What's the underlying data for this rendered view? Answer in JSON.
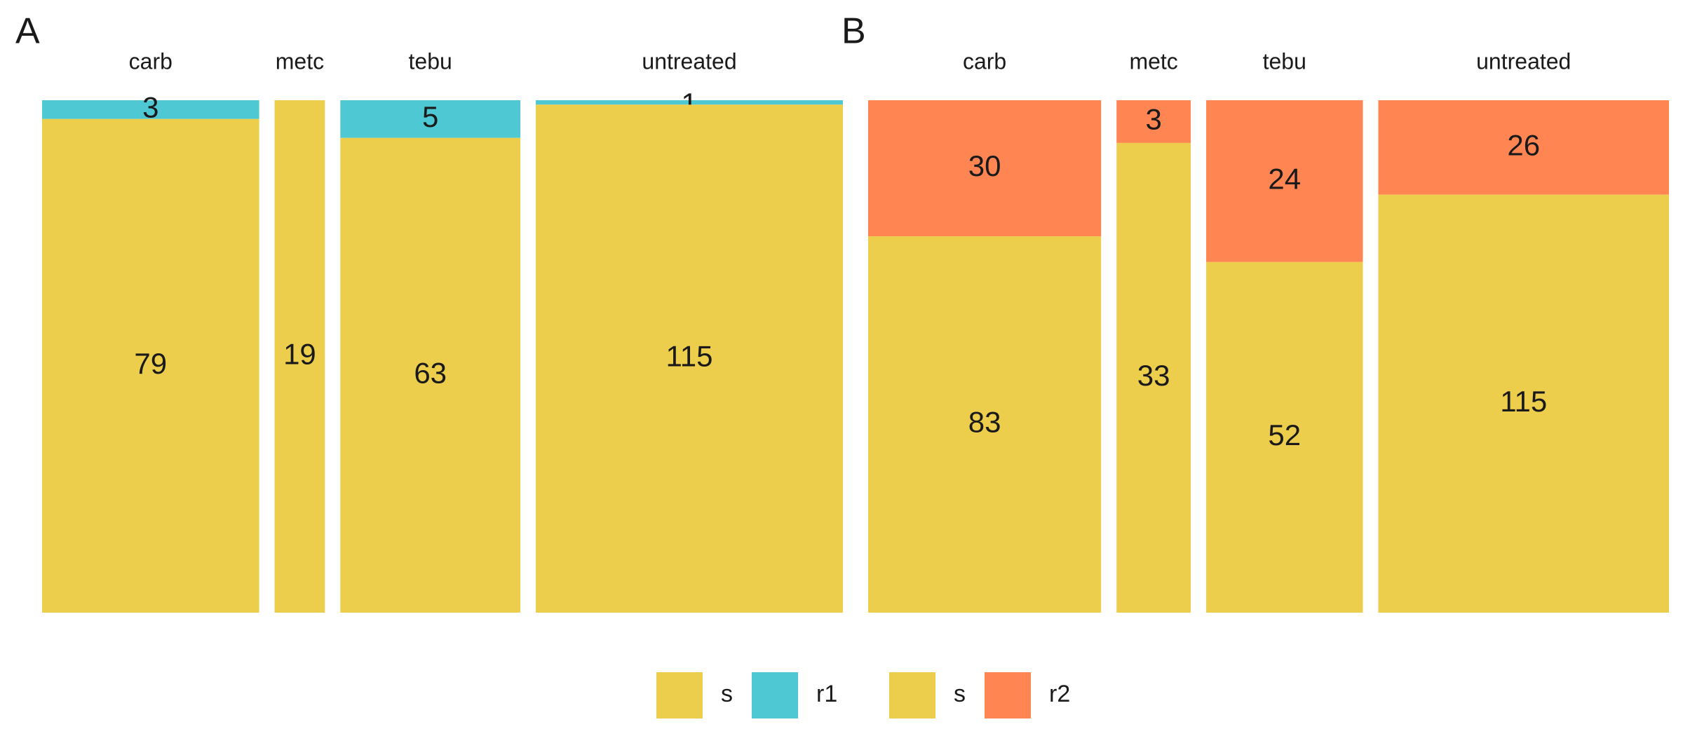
{
  "chart_data": [
    {
      "type": "bar",
      "subtype": "mosaic",
      "panel": "A",
      "categories": [
        "carb",
        "metc",
        "tebu",
        "untreated"
      ],
      "series": [
        {
          "name": "s",
          "values": [
            79,
            19,
            63,
            115
          ],
          "color": "#ECCD4C"
        },
        {
          "name": "r1",
          "values": [
            3,
            0,
            5,
            1
          ],
          "color": "#4EC8D2"
        }
      ],
      "stack_order_top_to_bottom": [
        "r1",
        "s"
      ],
      "labels": [
        [
          "79",
          "3"
        ],
        [
          "19",
          ""
        ],
        [
          "63",
          "5"
        ],
        [
          "115",
          "1"
        ]
      ],
      "xlabel": "",
      "ylabel": "",
      "grid": false
    },
    {
      "type": "bar",
      "subtype": "mosaic",
      "panel": "B",
      "categories": [
        "carb",
        "metc",
        "tebu",
        "untreated"
      ],
      "series": [
        {
          "name": "s",
          "values": [
            83,
            33,
            52,
            115
          ],
          "color": "#ECCD4C"
        },
        {
          "name": "r2",
          "values": [
            30,
            3,
            24,
            26
          ],
          "color": "#FF8552"
        }
      ],
      "stack_order_top_to_bottom": [
        "r2",
        "s"
      ],
      "labels": [
        [
          "83",
          "30"
        ],
        [
          "33",
          "3"
        ],
        [
          "52",
          "24"
        ],
        [
          "115",
          "26"
        ]
      ],
      "xlabel": "",
      "ylabel": "",
      "grid": false
    }
  ],
  "legend": {
    "position": "bottom",
    "groups": [
      {
        "items": [
          {
            "label": "s",
            "color": "#ECCD4C"
          },
          {
            "label": "r1",
            "color": "#4EC8D2"
          }
        ]
      },
      {
        "items": [
          {
            "label": "s",
            "color": "#ECCD4C"
          },
          {
            "label": "r2",
            "color": "#FF8552"
          }
        ]
      }
    ]
  }
}
